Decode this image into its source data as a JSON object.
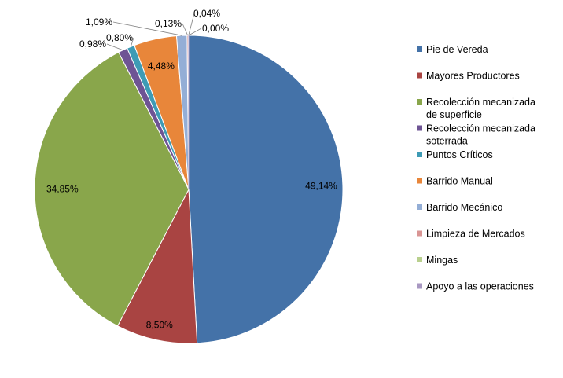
{
  "chart_data": {
    "type": "pie",
    "title": "",
    "legend_position": "right",
    "slices": [
      {
        "label": "Pie de Vereda",
        "value": 49.14,
        "value_label": "49,14%",
        "color": "#4472A8"
      },
      {
        "label": "Mayores Productores",
        "value": 8.5,
        "value_label": "8,50%",
        "color": "#A94442"
      },
      {
        "label": "Recolección mecanizada de superficie",
        "value": 34.85,
        "value_label": "34,85%",
        "color": "#89A64B"
      },
      {
        "label": "Recolección mecanizada soterrada",
        "value": 0.98,
        "value_label": "0,98%",
        "color": "#6E5494"
      },
      {
        "label": "Puntos Críticos",
        "value": 0.8,
        "value_label": "0,80%",
        "color": "#3E9BB5"
      },
      {
        "label": "Barrido Manual",
        "value": 4.48,
        "value_label": "4,48%",
        "color": "#E8863A"
      },
      {
        "label": "Barrido Mecánico",
        "value": 1.09,
        "value_label": "1,09%",
        "color": "#94AED6"
      },
      {
        "label": "Limpieza de Mercados",
        "value": 0.13,
        "value_label": "0,13%",
        "color": "#D99594"
      },
      {
        "label": "Mingas",
        "value": 0.04,
        "value_label": "0,04%",
        "color": "#B9D08E"
      },
      {
        "label": "Apoyo a las operaciones",
        "value": 0.0,
        "value_label": "0,00%",
        "color": "#A898C2"
      }
    ],
    "legend_lines": [
      [
        "Pie de Vereda"
      ],
      [
        "Mayores Productores"
      ],
      [
        "Recolección mecanizada",
        "de superficie"
      ],
      [
        "Recolección mecanizada",
        "soterrada"
      ],
      [
        "Puntos Críticos"
      ],
      [
        "Barrido Manual"
      ],
      [
        "Barrido Mecánico"
      ],
      [
        "Limpieza de Mercados"
      ],
      [
        "Mingas"
      ],
      [
        "Apoyo a las operaciones"
      ]
    ]
  }
}
